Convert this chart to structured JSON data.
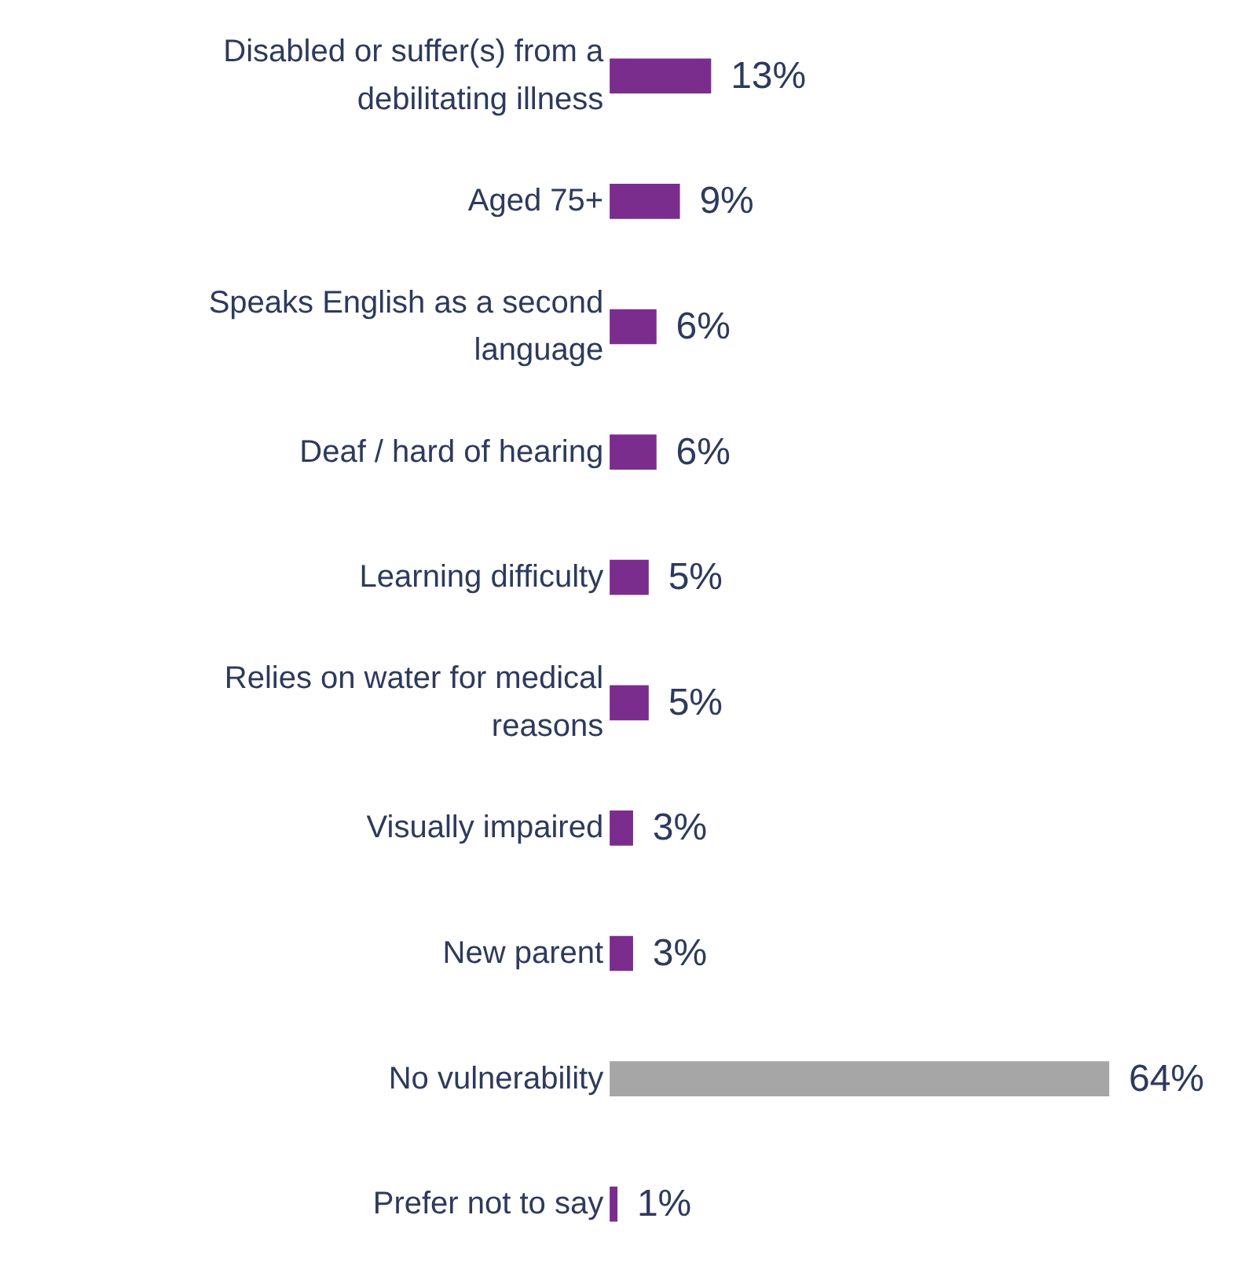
{
  "chart_data": {
    "type": "bar",
    "orientation": "horizontal",
    "value_labels": [
      "13%",
      "9%",
      "6%",
      "6%",
      "5%",
      "5%",
      "3%",
      "3%",
      "64%",
      "1%"
    ],
    "categories": [
      "Disabled or suffer(s) from a debilitating illness",
      "Aged 75+",
      "Speaks English as a second language",
      "Deaf / hard of hearing",
      "Learning difficulty",
      "Relies on water for medical reasons",
      "Visually impaired",
      "New parent",
      "No vulnerability",
      "Prefer not to say"
    ],
    "values": [
      13,
      9,
      6,
      6,
      5,
      5,
      3,
      3,
      64,
      1
    ],
    "colors": [
      "#7b2d8e",
      "#7b2d8e",
      "#7b2d8e",
      "#7b2d8e",
      "#7b2d8e",
      "#7b2d8e",
      "#7b2d8e",
      "#7b2d8e",
      "#a6a6a6",
      "#7b2d8e"
    ]
  }
}
